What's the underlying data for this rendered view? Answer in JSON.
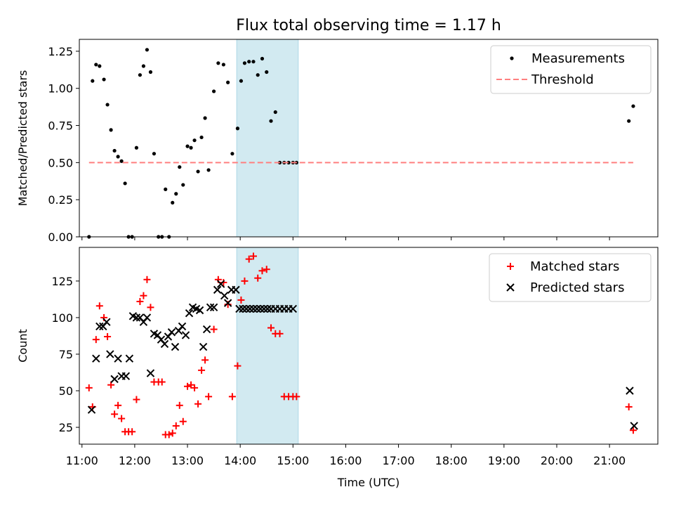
{
  "title": "Flux total observing time = 1.17 h",
  "colors": {
    "measurement": "#000000",
    "threshold": "#ff7f7f",
    "matched": "#ff0000",
    "predicted": "#000000",
    "highlight": "#add8e6"
  },
  "chart_data": [
    {
      "type": "scatter",
      "ylabel": "Matched/Predicted stars",
      "xlim": [
        "10:57",
        "21:55"
      ],
      "ylim": [
        0,
        1.33
      ],
      "y_ticks": [
        0.0,
        0.25,
        0.5,
        0.75,
        1.0,
        1.25
      ],
      "y_tick_labels": [
        "0.00",
        "0.25",
        "0.50",
        "0.75",
        "1.00",
        "1.25"
      ],
      "shaded_interval": [
        "13:56",
        "15:06"
      ],
      "legend": {
        "position": "upper right",
        "entries": [
          "Measurements",
          "Threshold"
        ]
      },
      "series": [
        {
          "name": "Measurements",
          "marker": "dot",
          "x": [
            "11:08",
            "11:12",
            "11:16",
            "11:20",
            "11:25",
            "11:29",
            "11:33",
            "11:37",
            "11:41",
            "11:45",
            "11:49",
            "11:53",
            "11:57",
            "12:02",
            "12:06",
            "12:10",
            "12:14",
            "12:18",
            "12:22",
            "12:27",
            "12:31",
            "12:35",
            "12:39",
            "12:43",
            "12:47",
            "12:51",
            "12:55",
            "13:00",
            "13:04",
            "13:08",
            "13:12",
            "13:16",
            "13:20",
            "13:24",
            "13:30",
            "13:35",
            "13:41",
            "13:46",
            "13:51",
            "13:57",
            "14:01",
            "14:05",
            "14:10",
            "14:15",
            "14:20",
            "14:25",
            "14:30",
            "14:35",
            "14:40",
            "14:45",
            "14:50",
            "14:55",
            "15:00",
            "15:04",
            "21:22",
            "21:27"
          ],
          "y": [
            0.0,
            1.05,
            1.16,
            1.15,
            1.06,
            0.89,
            0.72,
            0.58,
            0.54,
            0.51,
            0.36,
            0.0,
            0.0,
            0.6,
            1.09,
            1.15,
            1.26,
            1.11,
            0.56,
            0.0,
            0.0,
            0.32,
            0.0,
            0.23,
            0.29,
            0.47,
            0.35,
            0.61,
            0.6,
            0.65,
            0.44,
            0.67,
            0.8,
            0.45,
            0.98,
            1.17,
            1.16,
            1.04,
            0.56,
            0.73,
            1.05,
            1.17,
            1.18,
            1.18,
            1.09,
            1.2,
            1.11,
            0.78,
            0.84,
            0.5,
            0.5,
            0.5,
            0.5,
            0.5,
            0.78,
            0.88
          ]
        },
        {
          "name": "Threshold",
          "type": "line",
          "style": "dashed",
          "x": [
            "11:08",
            "21:27"
          ],
          "y": [
            0.5,
            0.5
          ]
        }
      ]
    },
    {
      "type": "scatter",
      "xlabel": "Time (UTC)",
      "ylabel": "Count",
      "xlim": [
        "10:57",
        "21:55"
      ],
      "ylim": [
        13.5,
        148
      ],
      "x_ticks": [
        "11:00",
        "12:00",
        "13:00",
        "14:00",
        "15:00",
        "16:00",
        "17:00",
        "18:00",
        "19:00",
        "20:00",
        "21:00"
      ],
      "y_ticks": [
        25,
        50,
        75,
        100,
        125
      ],
      "y_tick_labels": [
        "25",
        "50",
        "75",
        "100",
        "125"
      ],
      "shaded_interval": [
        "13:56",
        "15:06"
      ],
      "legend": {
        "position": "upper right",
        "entries": [
          "Matched stars",
          "Predicted stars"
        ]
      },
      "series": [
        {
          "name": "Matched stars",
          "marker": "plus",
          "x": [
            "11:08",
            "11:12",
            "11:16",
            "11:20",
            "11:25",
            "11:29",
            "11:33",
            "11:37",
            "11:41",
            "11:45",
            "11:49",
            "11:53",
            "11:57",
            "12:02",
            "12:06",
            "12:10",
            "12:14",
            "12:18",
            "12:22",
            "12:27",
            "12:31",
            "12:35",
            "12:39",
            "12:43",
            "12:47",
            "12:51",
            "12:55",
            "13:00",
            "13:04",
            "13:08",
            "13:12",
            "13:16",
            "13:20",
            "13:24",
            "13:30",
            "13:35",
            "13:41",
            "13:46",
            "13:51",
            "13:57",
            "14:01",
            "14:05",
            "14:10",
            "14:15",
            "14:20",
            "14:25",
            "14:30",
            "14:35",
            "14:40",
            "14:45",
            "14:50",
            "14:55",
            "15:00",
            "15:04",
            "21:22",
            "21:27"
          ],
          "y": [
            52,
            39,
            85,
            108,
            100,
            87,
            54,
            34,
            40,
            31,
            22,
            22,
            22,
            44,
            111,
            115,
            126,
            107,
            56,
            56,
            56,
            20,
            20,
            21,
            26,
            40,
            29,
            53,
            54,
            52,
            41,
            64,
            71,
            46,
            92,
            126,
            124,
            109,
            46,
            67,
            112,
            125,
            140,
            142,
            127,
            132,
            133,
            93,
            89,
            89,
            46,
            46,
            46,
            46,
            39,
            23
          ]
        },
        {
          "name": "Predicted stars",
          "marker": "x",
          "x": [
            "11:11",
            "11:16",
            "11:20",
            "11:24",
            "11:28",
            "11:32",
            "11:37",
            "11:41",
            "11:45",
            "11:50",
            "11:54",
            "11:58",
            "12:02",
            "12:06",
            "12:10",
            "12:14",
            "12:18",
            "12:22",
            "12:26",
            "12:30",
            "12:34",
            "12:38",
            "12:42",
            "12:46",
            "12:50",
            "12:54",
            "12:58",
            "13:02",
            "13:06",
            "13:10",
            "13:14",
            "13:18",
            "13:22",
            "13:26",
            "13:30",
            "13:34",
            "13:38",
            "13:42",
            "13:46",
            "13:50",
            "13:55",
            "13:59",
            "14:03",
            "14:07",
            "14:11",
            "14:15",
            "14:19",
            "14:23",
            "14:27",
            "14:31",
            "14:35",
            "14:40",
            "14:45",
            "14:50",
            "14:55",
            "15:00",
            "21:23",
            "21:28"
          ],
          "y": [
            37,
            72,
            94,
            94,
            97,
            75,
            58,
            72,
            60,
            60,
            72,
            101,
            100,
            100,
            97,
            100,
            62,
            89,
            88,
            85,
            82,
            87,
            90,
            80,
            91,
            94,
            88,
            103,
            107,
            106,
            105,
            80,
            92,
            107,
            107,
            119,
            123,
            115,
            110,
            119,
            119,
            106,
            106,
            106,
            106,
            106,
            106,
            106,
            106,
            106,
            106,
            106,
            106,
            106,
            106,
            106,
            50,
            26
          ]
        }
      ]
    }
  ]
}
